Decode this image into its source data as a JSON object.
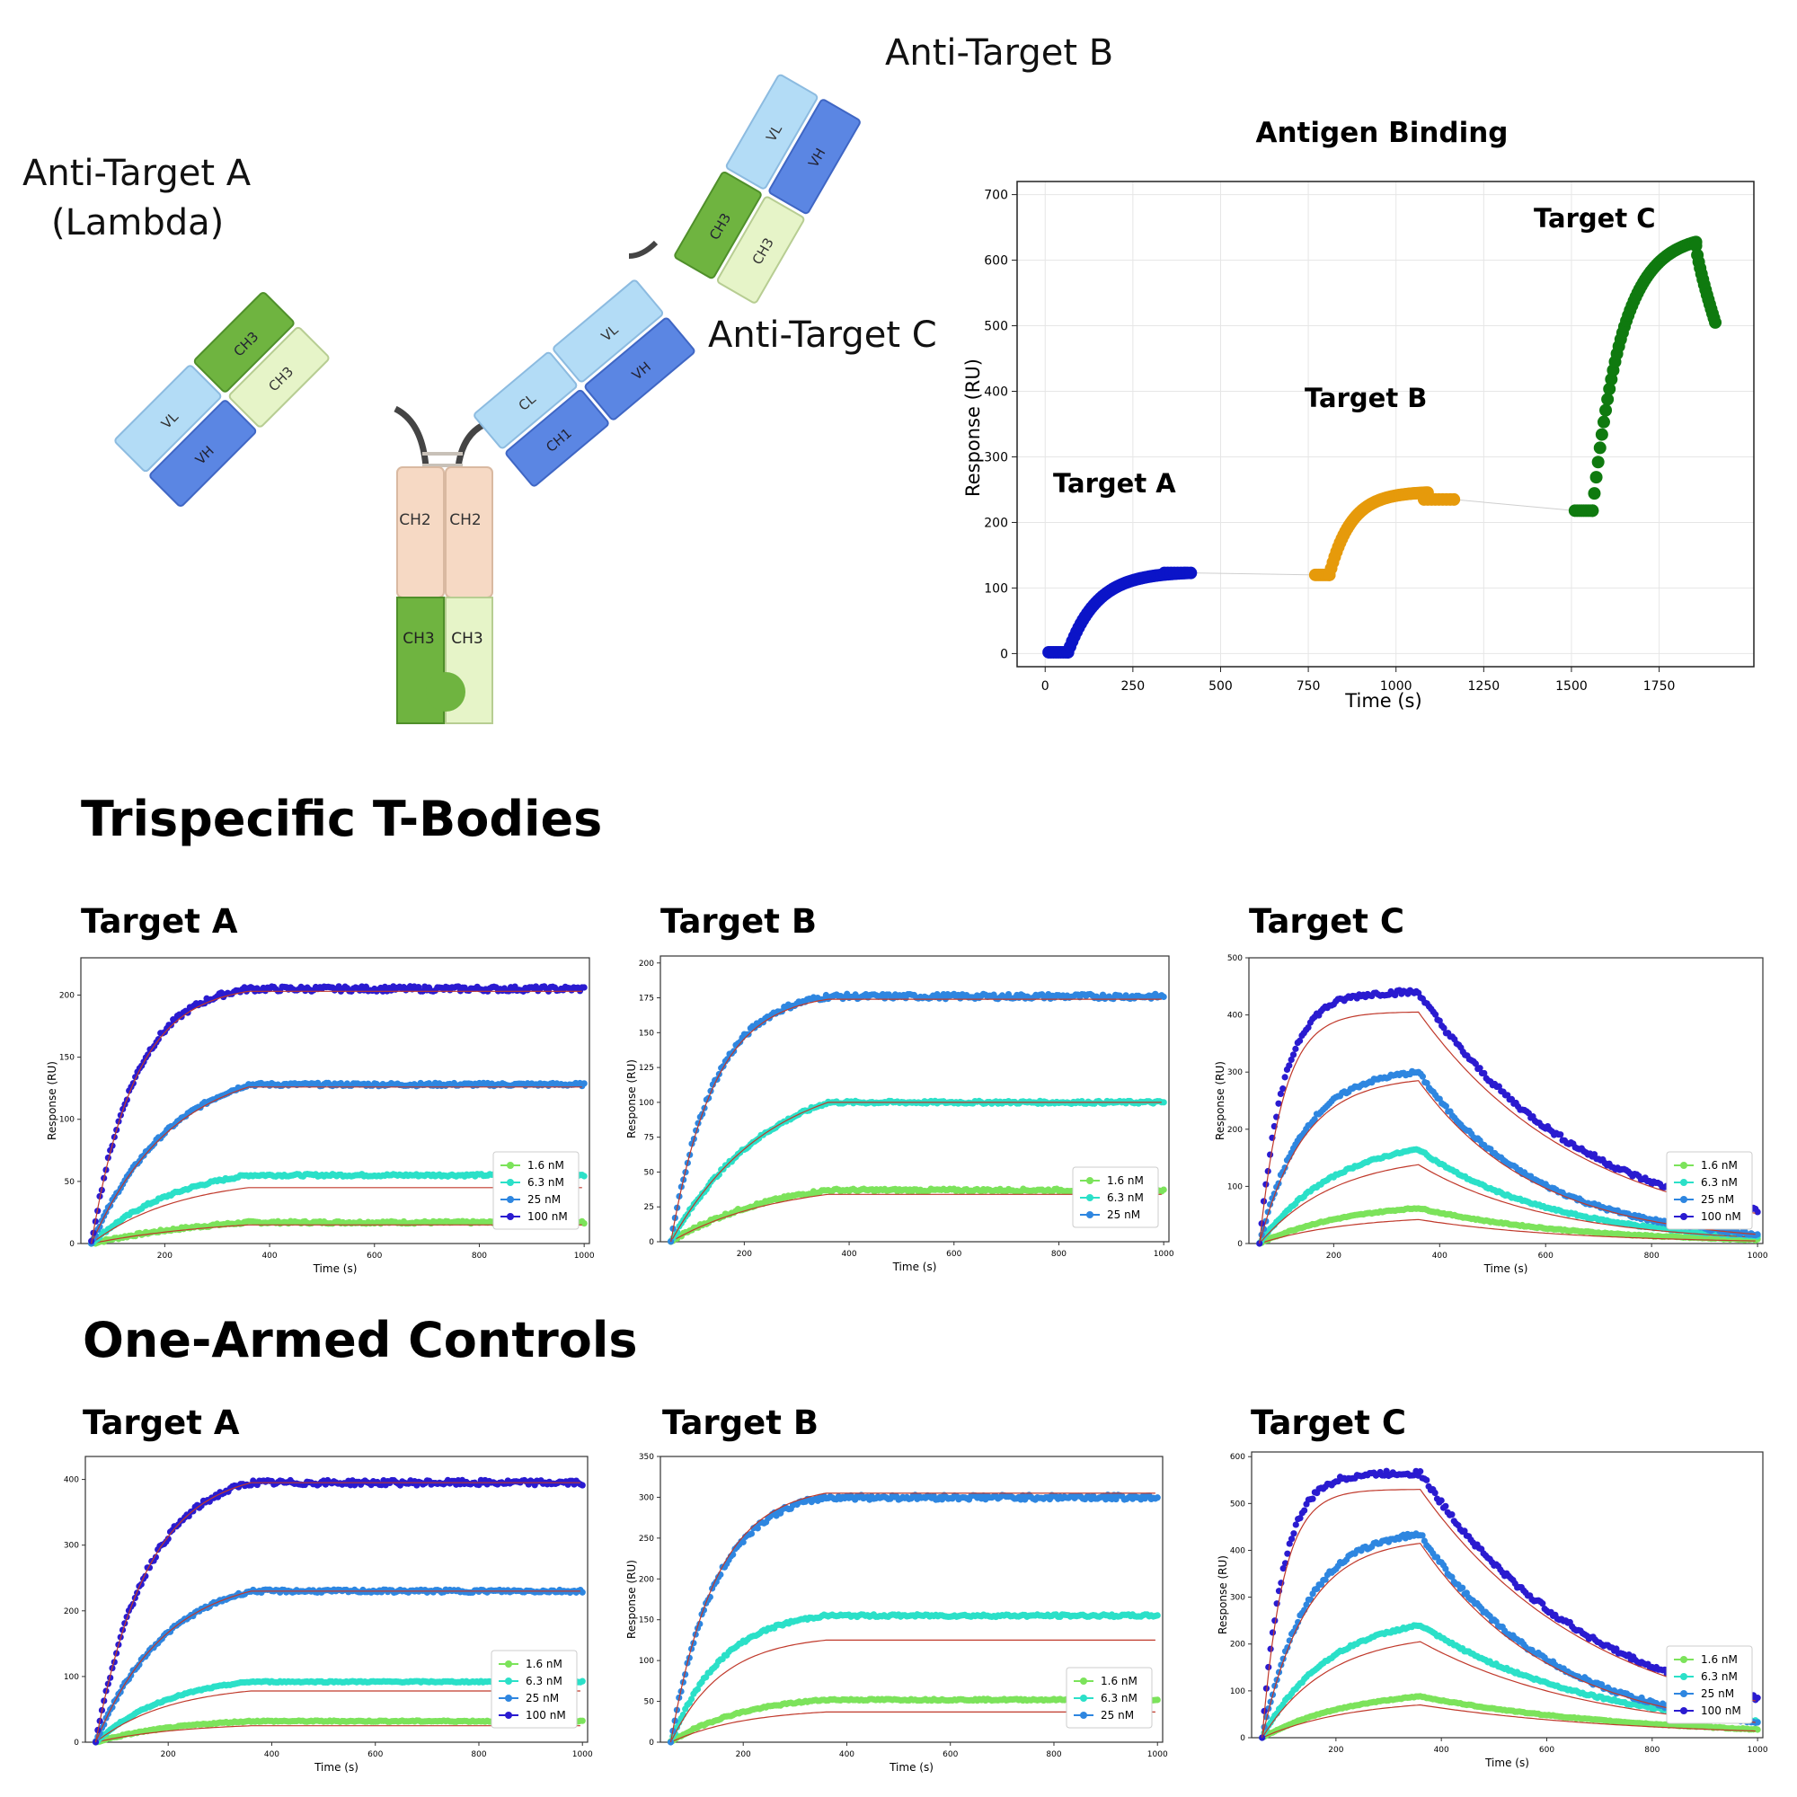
{
  "diagram": {
    "label_target_b": "Anti-Target B",
    "label_target_a_line1": "Anti-Target A",
    "label_target_a_line2": "(Lambda)",
    "label_target_c": "Anti-Target C",
    "domains": [
      "VL",
      "VH",
      "CH3",
      "CH3",
      "VL",
      "VH",
      "CH3",
      "CH3",
      "VL",
      "VH",
      "CL",
      "CH1",
      "CH2",
      "CH2",
      "CH3",
      "CH3"
    ],
    "colors": {
      "vl": "#b3dcf6",
      "vh": "#5b86e3",
      "ch3_dark": "#6fb440",
      "ch3_light": "#e6f4c8",
      "ch2": "#f6d9c4",
      "hinge": "#444444"
    }
  },
  "main_chart": {
    "title": "Antigen Binding",
    "xlabel": "Time (s)",
    "ylabel": "Response (RU)",
    "xticks": [
      0,
      250,
      500,
      750,
      1000,
      1250,
      1500,
      1750
    ],
    "yticks": [
      0,
      100,
      200,
      300,
      400,
      500,
      600,
      700
    ],
    "annotations": [
      "Target A",
      "Target B",
      "Target C"
    ]
  },
  "sections": {
    "trispecific": "Trispecific T-Bodies",
    "one_armed": "One-Armed Controls"
  },
  "panel_titles": {
    "t_a": "Target A",
    "t_b": "Target B",
    "t_c": "Target C",
    "o_a": "Target A",
    "o_b": "Target B",
    "o_c": "Target C"
  },
  "chart_data": [
    {
      "type": "scatter",
      "title": "Antigen Binding",
      "xlabel": "Time (s)",
      "ylabel": "Response (RU)",
      "xlim": [
        -80,
        2020
      ],
      "ylim": [
        -20,
        720
      ],
      "grid": true,
      "series": [
        {
          "name": "Target A",
          "color": "#0b14c8",
          "segments": [
            {
              "kind": "flat",
              "x0": 10,
              "x1": 65,
              "y": 2
            },
            {
              "kind": "assoc",
              "x0": 65,
              "x1": 400,
              "y0": 2,
              "plateau": 125,
              "rate": 0.012
            },
            {
              "kind": "flat",
              "x0": 340,
              "x1": 415,
              "y": 123
            }
          ]
        },
        {
          "name": "Target B",
          "color": "#e69a0b",
          "segments": [
            {
              "kind": "flat",
              "x0": 770,
              "x1": 810,
              "y": 120
            },
            {
              "kind": "assoc",
              "x0": 810,
              "x1": 1090,
              "y0": 120,
              "plateau": 247,
              "rate": 0.016
            },
            {
              "kind": "flat",
              "x0": 1080,
              "x1": 1165,
              "y": 235
            }
          ]
        },
        {
          "name": "Target C",
          "color": "#0f7a0f",
          "segments": [
            {
              "kind": "flat",
              "x0": 1510,
              "x1": 1560,
              "y": 218
            },
            {
              "kind": "assoc",
              "x0": 1560,
              "x1": 1855,
              "y0": 218,
              "plateau": 640,
              "rate": 0.012
            },
            {
              "kind": "diss",
              "x0": 1855,
              "x1": 1910,
              "y0": 622,
              "yend": 505
            }
          ]
        }
      ]
    },
    {
      "type": "line",
      "title": "Target A",
      "xlabel": "Time (s)",
      "ylabel": "Response (RU)",
      "xlim": [
        40,
        1010
      ],
      "ylim": [
        0,
        230
      ],
      "xticks": [
        200,
        400,
        600,
        800,
        1000
      ],
      "yticks": [
        0,
        50,
        100,
        150,
        200
      ],
      "legend": "lower-right",
      "legend_labels": [
        "1.6 nM",
        "6.3 nM",
        "25 nM",
        "100 nM"
      ],
      "assoc_start": 60,
      "assoc_end": 360,
      "x_end": 1000,
      "series": [
        {
          "name": "1.6 nM",
          "color": "#7ce35b",
          "plateau": 17,
          "fit_plateau": 15,
          "rate": 0.004,
          "kd": 0
        },
        {
          "name": "6.3 nM",
          "color": "#2be0c8",
          "plateau": 55,
          "fit_plateau": 45,
          "rate": 0.006,
          "kd": 0
        },
        {
          "name": "25 nM",
          "color": "#2e86e0",
          "plateau": 128,
          "fit_plateau": 126,
          "rate": 0.0065,
          "kd": 0
        },
        {
          "name": "100 nM",
          "color": "#2a1bd0",
          "plateau": 205,
          "fit_plateau": 203,
          "rate": 0.012,
          "kd": 0
        }
      ]
    },
    {
      "type": "line",
      "title": "Target B",
      "xlabel": "Time (s)",
      "ylabel": "Response (RU)",
      "xlim": [
        40,
        1010
      ],
      "ylim": [
        0,
        205
      ],
      "xticks": [
        200,
        400,
        600,
        800,
        1000
      ],
      "yticks": [
        0,
        25,
        50,
        75,
        100,
        125,
        150,
        175,
        200
      ],
      "legend": "lower-right",
      "legend_labels": [
        "1.6 nM",
        "6.3 nM",
        "25 nM"
      ],
      "assoc_start": 60,
      "assoc_end": 360,
      "x_end": 1000,
      "series": [
        {
          "name": "1.6 nM",
          "color": "#7ce35b",
          "plateau": 37,
          "fit_plateau": 34,
          "rate": 0.005,
          "kd": 0
        },
        {
          "name": "6.3 nM",
          "color": "#2be0c8",
          "plateau": 100,
          "fit_plateau": 100,
          "rate": 0.0055,
          "kd": 0
        },
        {
          "name": "25 nM",
          "color": "#2e86e0",
          "plateau": 176,
          "fit_plateau": 174,
          "rate": 0.012,
          "kd": 0
        }
      ]
    },
    {
      "type": "line",
      "title": "Target C",
      "xlabel": "Time (s)",
      "ylabel": "Response (RU)",
      "xlim": [
        40,
        1010
      ],
      "ylim": [
        0,
        500
      ],
      "xticks": [
        200,
        400,
        600,
        800,
        1000
      ],
      "yticks": [
        0,
        100,
        200,
        300,
        400,
        500
      ],
      "legend": "lower-right",
      "legend_labels": [
        "1.6 nM",
        "6.3 nM",
        "25 nM",
        "100 nM"
      ],
      "assoc_start": 60,
      "assoc_end": 360,
      "x_end": 1000,
      "series": [
        {
          "name": "1.6 nM",
          "color": "#7ce35b",
          "plateau": 62,
          "fit_plateau": 42,
          "rate": 0.006,
          "kd": 0.0035
        },
        {
          "name": "6.3 nM",
          "color": "#2be0c8",
          "plateau": 165,
          "fit_plateau": 138,
          "rate": 0.007,
          "kd": 0.004
        },
        {
          "name": "25 nM",
          "color": "#2e86e0",
          "plateau": 300,
          "fit_plateau": 285,
          "rate": 0.012,
          "kd": 0.0045
        },
        {
          "name": "100 nM",
          "color": "#2a1bd0",
          "plateau": 440,
          "fit_plateau": 405,
          "rate": 0.022,
          "kd": 0.0032
        }
      ]
    },
    {
      "type": "line",
      "title": "Target A",
      "xlabel": "Time (s)",
      "ylabel": "",
      "xlim": [
        40,
        1010
      ],
      "ylim": [
        0,
        435
      ],
      "xticks": [
        200,
        400,
        600,
        800,
        1000
      ],
      "yticks": [
        0,
        100,
        200,
        300,
        400
      ],
      "legend": "lower-right",
      "legend_labels": [
        "1.6 nM",
        "6.3 nM",
        "25 nM",
        "100 nM"
      ],
      "assoc_start": 60,
      "assoc_end": 360,
      "x_end": 1000,
      "series": [
        {
          "name": "1.6 nM",
          "color": "#7ce35b",
          "plateau": 32,
          "fit_plateau": 25,
          "rate": 0.006,
          "kd": 0
        },
        {
          "name": "6.3 nM",
          "color": "#2be0c8",
          "plateau": 92,
          "fit_plateau": 78,
          "rate": 0.007,
          "kd": 0
        },
        {
          "name": "25 nM",
          "color": "#2e86e0",
          "plateau": 230,
          "fit_plateau": 230,
          "rate": 0.0075,
          "kd": 0
        },
        {
          "name": "100 nM",
          "color": "#2a1bd0",
          "plateau": 395,
          "fit_plateau": 395,
          "rate": 0.01,
          "kd": 0
        }
      ]
    },
    {
      "type": "line",
      "title": "Target B",
      "xlabel": "Time (s)",
      "ylabel": "Response (RU)",
      "xlim": [
        40,
        1010
      ],
      "ylim": [
        0,
        350
      ],
      "xticks": [
        200,
        400,
        600,
        800,
        1000
      ],
      "yticks": [
        0,
        50,
        100,
        150,
        200,
        250,
        300,
        350
      ],
      "legend": "lower-right",
      "legend_labels": [
        "1.6 nM",
        "6.3 nM",
        "25 nM"
      ],
      "assoc_start": 60,
      "assoc_end": 360,
      "x_end": 1000,
      "series": [
        {
          "name": "1.6 nM",
          "color": "#7ce35b",
          "plateau": 52,
          "fit_plateau": 37,
          "rate": 0.007,
          "kd": 0
        },
        {
          "name": "6.3 nM",
          "color": "#2be0c8",
          "plateau": 155,
          "fit_plateau": 125,
          "rate": 0.01,
          "kd": 0
        },
        {
          "name": "25 nM",
          "color": "#2e86e0",
          "plateau": 300,
          "fit_plateau": 305,
          "rate": 0.0115,
          "kd": 0
        }
      ]
    },
    {
      "type": "line",
      "title": "Target C",
      "xlabel": "Time (s)",
      "ylabel": "Response (RU)",
      "xlim": [
        40,
        1010
      ],
      "ylim": [
        0,
        610
      ],
      "xticks": [
        200,
        400,
        600,
        800,
        1000
      ],
      "yticks": [
        0,
        100,
        200,
        300,
        400,
        500,
        600
      ],
      "legend": "lower-right",
      "legend_labels": [
        "1.6 nM",
        "6.3 nM",
        "25 nM",
        "100 nM"
      ],
      "assoc_start": 60,
      "assoc_end": 360,
      "x_end": 1000,
      "series": [
        {
          "name": "1.6 nM",
          "color": "#7ce35b",
          "plateau": 88,
          "fit_plateau": 70,
          "rate": 0.006,
          "kd": 0.0025
        },
        {
          "name": "6.3 nM",
          "color": "#2be0c8",
          "plateau": 240,
          "fit_plateau": 205,
          "rate": 0.008,
          "kd": 0.003
        },
        {
          "name": "25 nM",
          "color": "#2e86e0",
          "plateau": 435,
          "fit_plateau": 415,
          "rate": 0.012,
          "kd": 0.004
        },
        {
          "name": "100 nM",
          "color": "#2a1bd0",
          "plateau": 565,
          "fit_plateau": 530,
          "rate": 0.025,
          "kd": 0.003
        }
      ]
    }
  ]
}
